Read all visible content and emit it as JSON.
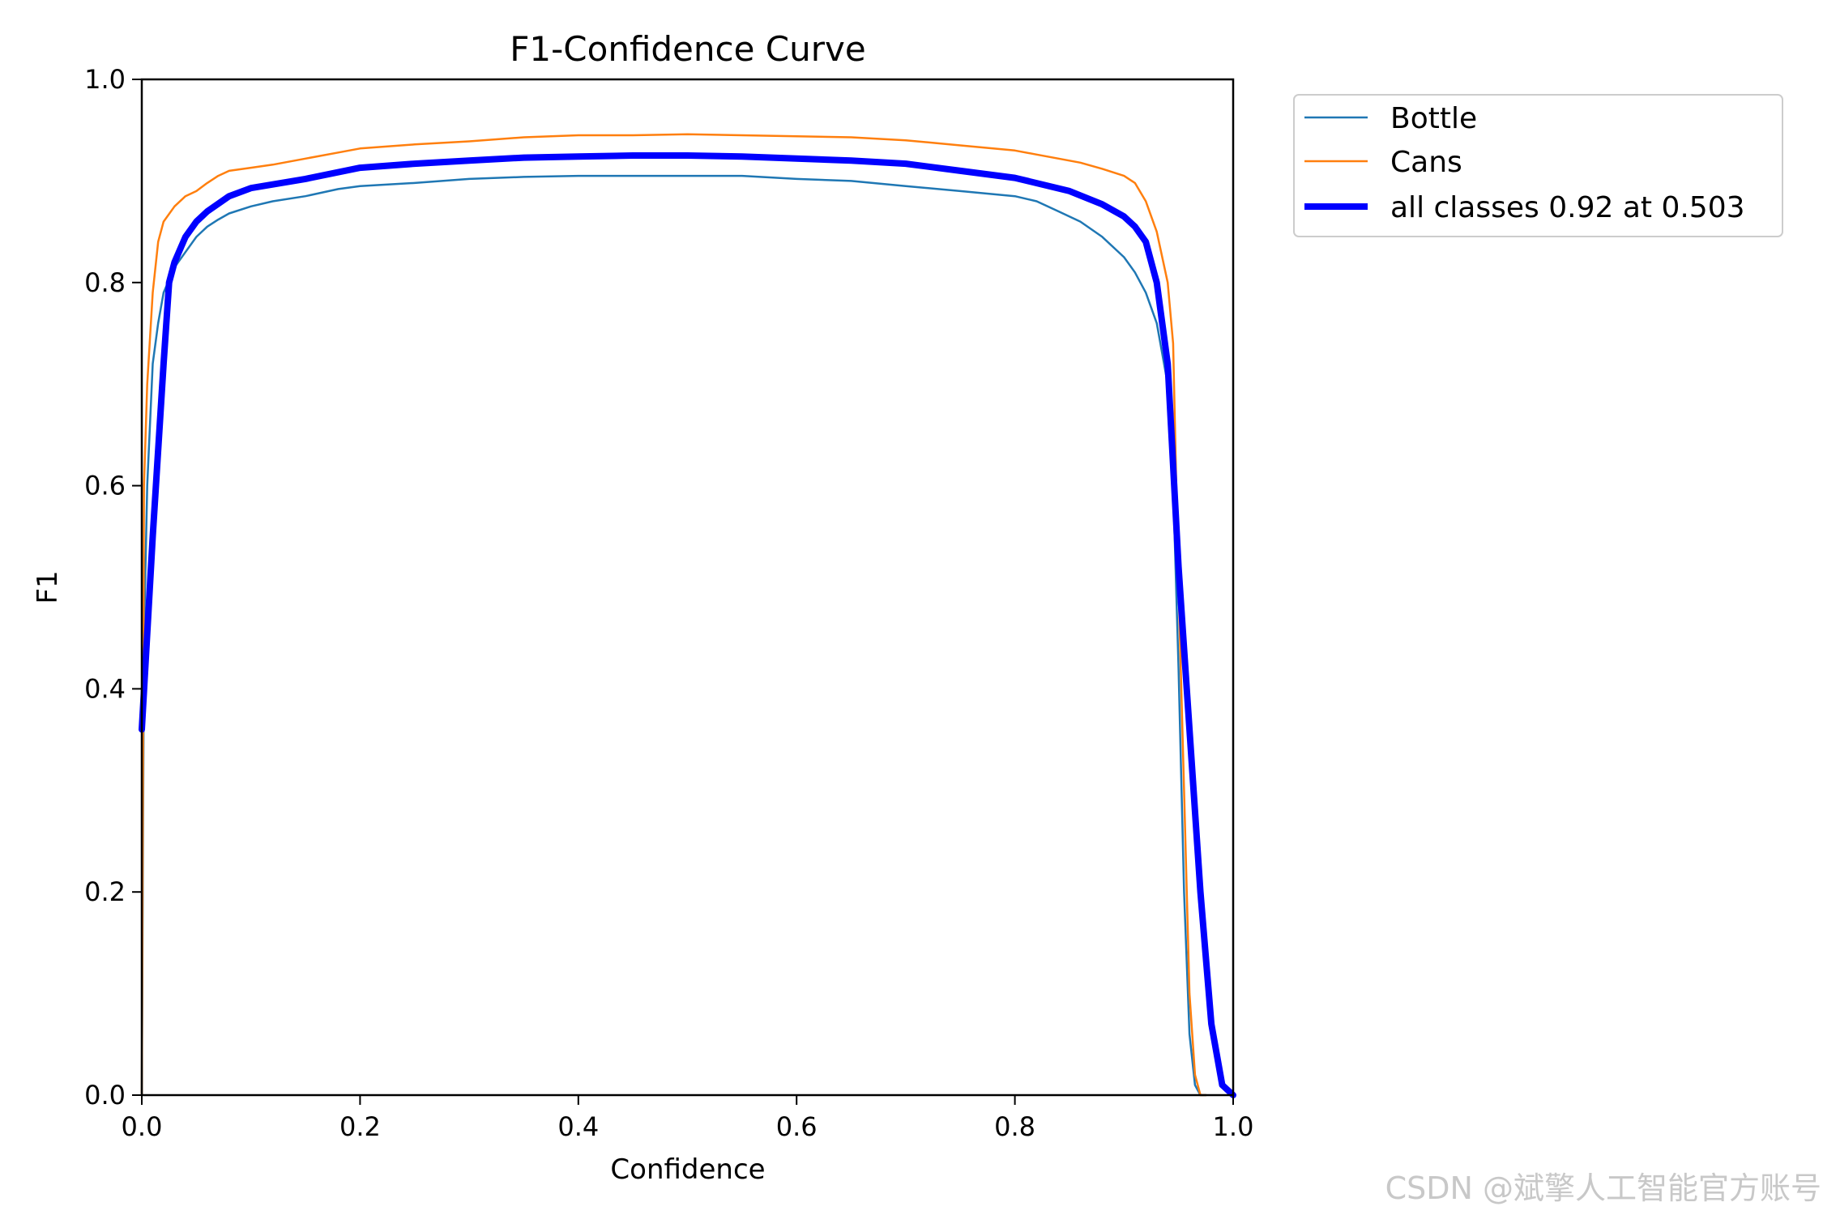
{
  "chart_data": {
    "type": "line",
    "title": "F1-Confidence Curve",
    "xlabel": "Confidence",
    "ylabel": "F1",
    "xlim": [
      0.0,
      1.0
    ],
    "ylim": [
      0.0,
      1.0
    ],
    "xticks": [
      "0.0",
      "0.2",
      "0.4",
      "0.6",
      "0.8",
      "1.0"
    ],
    "yticks": [
      "0.0",
      "0.2",
      "0.4",
      "0.6",
      "0.8",
      "1.0"
    ],
    "grid": false,
    "legend_position": "outside-top-right",
    "series": [
      {
        "name": "Bottle",
        "color": "#1f77b4",
        "x": [
          0.0,
          0.002,
          0.005,
          0.01,
          0.015,
          0.02,
          0.03,
          0.04,
          0.05,
          0.06,
          0.07,
          0.08,
          0.1,
          0.12,
          0.15,
          0.18,
          0.2,
          0.25,
          0.3,
          0.35,
          0.4,
          0.45,
          0.5,
          0.55,
          0.6,
          0.65,
          0.7,
          0.75,
          0.8,
          0.82,
          0.84,
          0.86,
          0.88,
          0.9,
          0.91,
          0.92,
          0.93,
          0.94,
          0.945,
          0.95,
          0.955,
          0.96,
          0.965,
          0.97,
          0.975
        ],
        "y": [
          0.0,
          0.45,
          0.6,
          0.72,
          0.76,
          0.79,
          0.815,
          0.83,
          0.845,
          0.855,
          0.862,
          0.868,
          0.875,
          0.88,
          0.885,
          0.892,
          0.895,
          0.898,
          0.902,
          0.904,
          0.905,
          0.905,
          0.905,
          0.905,
          0.902,
          0.9,
          0.895,
          0.89,
          0.885,
          0.88,
          0.87,
          0.86,
          0.845,
          0.825,
          0.81,
          0.79,
          0.76,
          0.7,
          0.6,
          0.42,
          0.2,
          0.06,
          0.01,
          0.0,
          0.0
        ]
      },
      {
        "name": "Cans",
        "color": "#ff7f0e",
        "x": [
          0.0,
          0.002,
          0.005,
          0.01,
          0.015,
          0.02,
          0.03,
          0.04,
          0.05,
          0.06,
          0.07,
          0.08,
          0.1,
          0.12,
          0.15,
          0.18,
          0.2,
          0.25,
          0.3,
          0.35,
          0.4,
          0.45,
          0.5,
          0.55,
          0.6,
          0.65,
          0.7,
          0.75,
          0.8,
          0.82,
          0.84,
          0.86,
          0.88,
          0.9,
          0.91,
          0.92,
          0.93,
          0.94,
          0.945,
          0.95,
          0.955,
          0.96,
          0.965,
          0.97,
          0.975
        ],
        "y": [
          0.0,
          0.6,
          0.7,
          0.79,
          0.84,
          0.86,
          0.875,
          0.885,
          0.89,
          0.898,
          0.905,
          0.91,
          0.913,
          0.916,
          0.922,
          0.928,
          0.932,
          0.936,
          0.939,
          0.943,
          0.945,
          0.945,
          0.946,
          0.945,
          0.944,
          0.943,
          0.94,
          0.935,
          0.93,
          0.926,
          0.922,
          0.918,
          0.912,
          0.905,
          0.898,
          0.88,
          0.85,
          0.8,
          0.74,
          0.5,
          0.3,
          0.1,
          0.02,
          0.0,
          0.0
        ]
      },
      {
        "name": "all classes 0.92 at 0.503",
        "color": "#0000ff",
        "x": [
          0.0,
          0.01,
          0.02,
          0.025,
          0.03,
          0.04,
          0.05,
          0.06,
          0.08,
          0.1,
          0.15,
          0.2,
          0.25,
          0.3,
          0.35,
          0.4,
          0.45,
          0.5,
          0.55,
          0.6,
          0.65,
          0.7,
          0.75,
          0.8,
          0.85,
          0.88,
          0.9,
          0.91,
          0.92,
          0.93,
          0.94,
          0.95,
          0.96,
          0.97,
          0.98,
          0.99,
          1.0
        ],
        "y": [
          0.36,
          0.55,
          0.72,
          0.8,
          0.82,
          0.845,
          0.86,
          0.87,
          0.885,
          0.893,
          0.902,
          0.913,
          0.917,
          0.92,
          0.923,
          0.924,
          0.925,
          0.925,
          0.924,
          0.922,
          0.92,
          0.917,
          0.91,
          0.903,
          0.89,
          0.877,
          0.865,
          0.855,
          0.84,
          0.8,
          0.72,
          0.52,
          0.36,
          0.2,
          0.07,
          0.01,
          0.0
        ]
      }
    ]
  },
  "watermark": "CSDN @斌擎人工智能官方账号"
}
